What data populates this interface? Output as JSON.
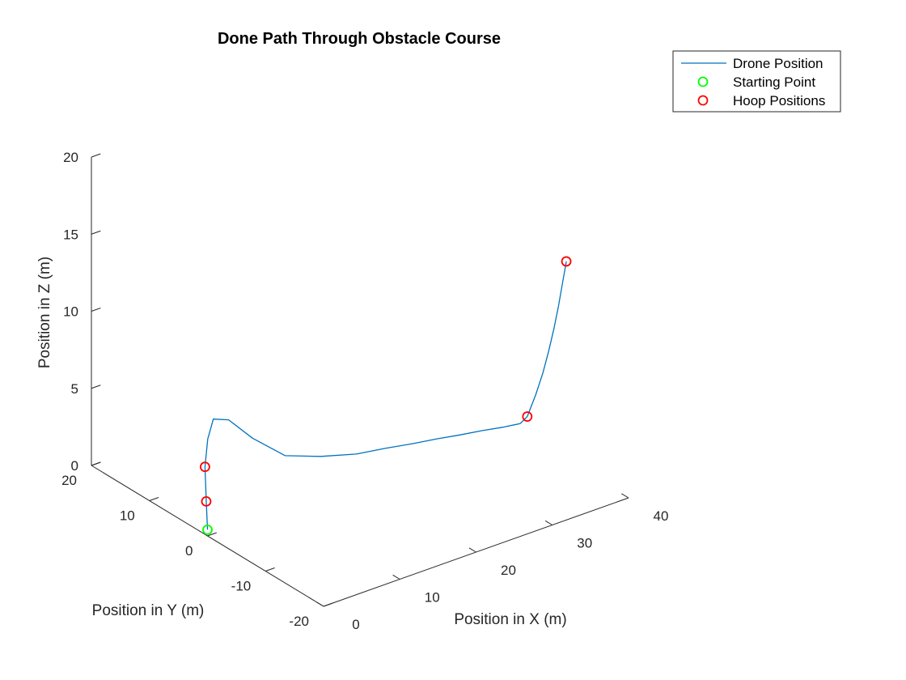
{
  "chart_data": {
    "type": "line",
    "title": "Done Path Through Obstacle Course",
    "xlabel": "Position in X (m)",
    "ylabel": "Position in Y (m)",
    "zlabel": "Position in Z (m)",
    "xlim": [
      0,
      40
    ],
    "ylim": [
      -20,
      20
    ],
    "zlim": [
      0,
      20
    ],
    "x_ticks": [
      "0",
      "10",
      "20",
      "30",
      "40"
    ],
    "y_ticks": [
      "-20",
      "-10",
      "0",
      "10",
      "20"
    ],
    "z_ticks": [
      "0",
      "5",
      "10",
      "15",
      "20"
    ],
    "grid": false,
    "legend_position": "top-right",
    "legend": [
      {
        "label": "Drone Position",
        "marker": "line",
        "color": "#0072BD"
      },
      {
        "label": "Starting Point",
        "marker": "circle",
        "color": "#00FF00"
      },
      {
        "label": "Hoop Positions",
        "marker": "circle",
        "color": "#FF0000"
      }
    ],
    "colors": {
      "path": "#0072BD",
      "start": "#00FF00",
      "hoop": "#FF0000"
    },
    "series": [
      {
        "name": "Drone Position",
        "x": [
          0,
          2.5,
          5,
          6.5,
          8,
          10,
          12,
          14,
          16,
          18,
          20,
          22,
          24,
          26,
          28,
          30,
          31.5,
          32.2,
          32.8,
          33.2,
          33.5,
          33.8,
          34,
          34.2,
          34.5
        ],
        "y": [
          0,
          3.5,
          7,
          8.5,
          9.5,
          9.5,
          8,
          5,
          1.5,
          -2,
          -4.5,
          -6.5,
          -8,
          -9.3,
          -10.5,
          -11.5,
          -12.5,
          -12.8,
          -13.5,
          -14.2,
          -14.8,
          -15.3,
          -15.8,
          -16.2,
          -16.5
        ],
        "z": [
          0.4,
          1.0,
          2.0,
          3.2,
          4.0,
          3.6,
          2.4,
          1.6,
          2.0,
          2.6,
          3.2,
          3.6,
          3.9,
          4.1,
          4.3,
          4.4,
          4.6,
          5.0,
          6.5,
          8.0,
          9.5,
          11.0,
          12.5,
          14.0,
          15.5
        ]
      }
    ],
    "start_point": {
      "x": 0,
      "y": 0,
      "z": 0.4
    },
    "hoop_positions": [
      {
        "x": 2.5,
        "y": 3.5,
        "z": 1.0
      },
      {
        "x": 5,
        "y": 7,
        "z": 2.0
      },
      {
        "x": 32.2,
        "y": -12.8,
        "z": 5.0
      },
      {
        "x": 34.5,
        "y": -16.5,
        "z": 15.5
      }
    ]
  }
}
